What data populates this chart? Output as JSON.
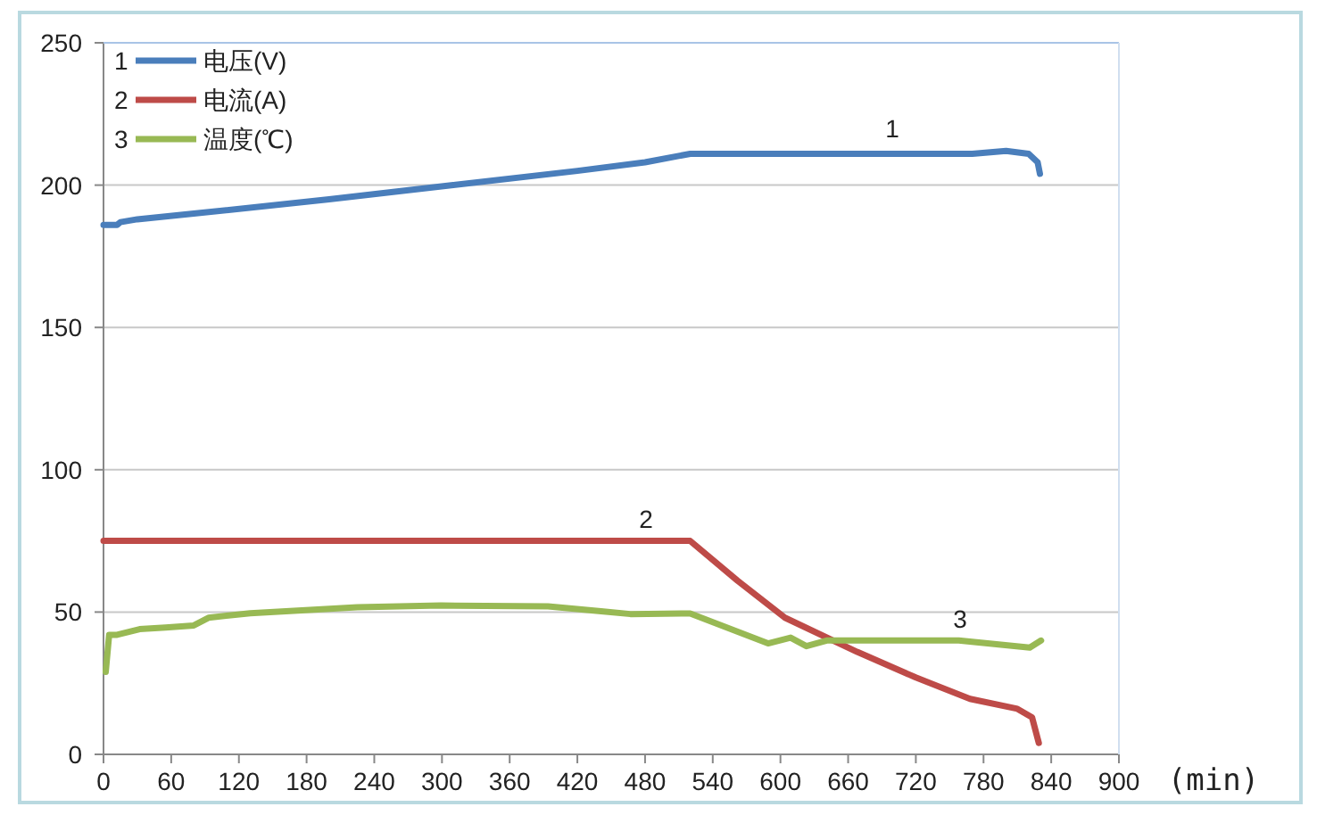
{
  "chart_data": {
    "type": "line",
    "xlabel": "(min)",
    "xlim": [
      0,
      900
    ],
    "xticks": [
      0,
      60,
      120,
      180,
      240,
      300,
      360,
      420,
      480,
      540,
      600,
      660,
      720,
      780,
      840,
      900
    ],
    "ylim": [
      0,
      250
    ],
    "yticks": [
      0,
      50,
      100,
      150,
      200,
      250
    ],
    "grid": "y",
    "legend": "top left",
    "marker": "none",
    "line_style": "solid",
    "series": [
      {
        "name": "电压(V)",
        "color": "#4a7ebb",
        "x": [
          0,
          12,
          15,
          30,
          80,
          200,
          310,
          420,
          480,
          520,
          600,
          700,
          770,
          800,
          820,
          828,
          830
        ],
        "values": [
          186,
          186,
          187,
          188,
          190,
          195,
          200,
          205,
          208,
          211,
          211,
          211,
          211,
          212,
          211,
          208,
          204
        ]
      },
      {
        "name": "电流(A)",
        "color": "#be4b48",
        "x": [
          0,
          520,
          562,
          604,
          668,
          720,
          768,
          810,
          823,
          829
        ],
        "values": [
          75,
          75,
          61,
          48,
          36,
          27,
          19.5,
          16,
          13,
          4
        ]
      },
      {
        "name": "温度(℃)",
        "color": "#98b954",
        "x": [
          2,
          5,
          12,
          32,
          55,
          80,
          93,
          130,
          225,
          299,
          394,
          441,
          467,
          520,
          589,
          609,
          623,
          641,
          758,
          821,
          831
        ],
        "values": [
          29,
          42,
          42,
          44,
          44.6,
          45.3,
          48,
          49.6,
          51.7,
          52.3,
          52,
          50.3,
          49.3,
          49.5,
          39,
          41,
          38,
          40,
          40,
          37.5,
          40
        ]
      }
    ],
    "annotations": [
      "1",
      "2",
      "3"
    ]
  }
}
